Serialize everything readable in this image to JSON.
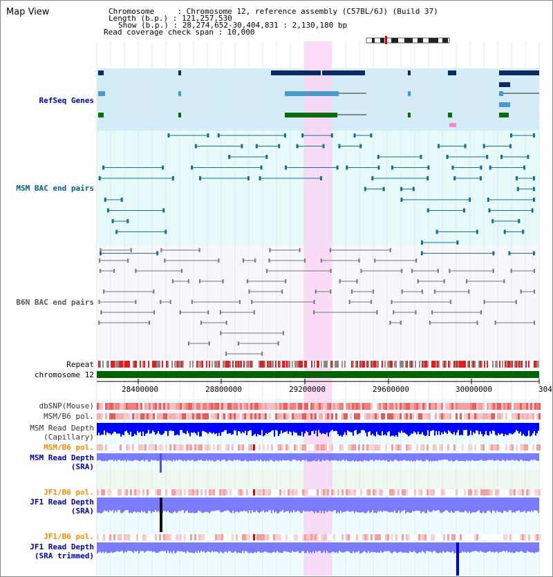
{
  "map_view_title": "Map View",
  "info": {
    "chromosome_line": "Chromosome     : Chromosome 12, reference assembly (C57BL/6J) (Build 37)",
    "length_line": "Length (b.p.) : 121,257,530",
    "show_line": "Show (b.p.) : 28,274,652-30,404,831 : 2,130,180 bp",
    "coverage_line": "Read coverage check span : 10,000"
  },
  "tracks": {
    "refseq": {
      "label": "RefSeq Genes",
      "color": "#0000aa"
    },
    "msm_bac": {
      "label": "MSM BAC end pairs",
      "color": "#006080"
    },
    "b6n_bac": {
      "label": "B6N BAC end pairs",
      "color": "#555555"
    },
    "repeat": {
      "label": "Repeat",
      "color": "#000000"
    },
    "chromosome": {
      "label": "chromosome 12",
      "color": "#000000"
    },
    "dbsnp": {
      "label": "dbSNP(Mouse)",
      "color": "#333333"
    },
    "msm_b6_pol_1": {
      "label": "MSM/B6 pol.",
      "color": "#333333"
    },
    "msm_depth_cap_1": {
      "label": "MSM Read Depth",
      "color": "#333333"
    },
    "msm_depth_cap_2": {
      "label": "(Capillary)",
      "color": "#333333"
    },
    "msm_b6_pol_2": {
      "label": "MSM/B6 pol.",
      "color": "#ff8800"
    },
    "msm_depth_sra_1": {
      "label": "MSM Read Depth",
      "color": "#0000aa"
    },
    "msm_depth_sra_2": {
      "label": "(SRA)",
      "color": "#0000aa"
    },
    "jf1_b6_pol": {
      "label": "JF1/B6 pol.",
      "color": "#ff8800"
    },
    "jf1_depth_sra_1": {
      "label": "JF1 Read Depth",
      "color": "#0000aa"
    },
    "jf1_depth_sra_2": {
      "label": "(SRA)",
      "color": "#0000aa"
    },
    "jf1_b6_pol_2": {
      "label": "JF1/B6 pol.",
      "color": "#ff8800"
    },
    "jf1_depth_trim_1": {
      "label": "JF1 Read Depth",
      "color": "#0000aa"
    },
    "jf1_depth_trim_2": {
      "label": "(SRA trimmed)",
      "color": "#0000aa"
    }
  },
  "axis": {
    "ticks": [
      "28400000",
      "28800000",
      "29200000",
      "29600000",
      "30000000",
      "304"
    ]
  },
  "colors": {
    "highlight": "#f9d6f4",
    "refseq_bg": "#d4ecf8",
    "msm_bg": "#e6fafa",
    "chromosome_bar": "#006400",
    "depth_blue": "#0000ff",
    "depth_light": "#7b7bff"
  }
}
